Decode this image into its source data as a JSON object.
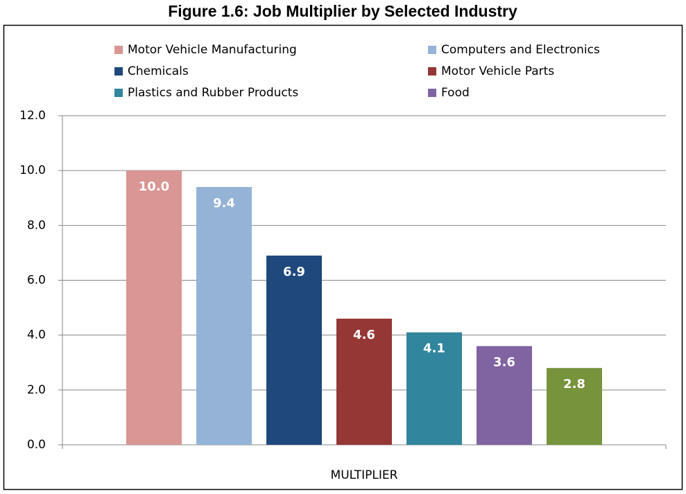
{
  "chart_data": {
    "type": "bar",
    "title": "Figure 1.6:  Job Multiplier by Selected Industry",
    "categories": [
      "MULTIPLIER"
    ],
    "series": [
      {
        "name": "Motor Vehicle Manufacturing",
        "color": "#d99694",
        "values": [
          10
        ],
        "value_labels": [
          "10.0"
        ]
      },
      {
        "name": "Computers and Electronics",
        "color": "#95b3d7",
        "values": [
          9.4
        ]
      },
      {
        "name": "Chemicals",
        "color": "#1f497d",
        "values": [
          6.9
        ]
      },
      {
        "name": "Motor Vehicle Parts",
        "color": "#953735",
        "values": [
          4.6
        ]
      },
      {
        "name": "Plastics and Rubber Products",
        "color": "#31859c",
        "values": [
          4.1
        ]
      },
      {
        "name": "Food",
        "color": "#8064a2",
        "values": [
          3.6
        ]
      },
      {
        "color": "#77933c",
        "values": [
          2.8
        ]
      }
    ],
    "ylim": [
      0,
      12
    ],
    "yticks": [
      {
        "value": 0,
        "label": "0.0"
      },
      {
        "value": 2,
        "label": "2.0"
      },
      {
        "value": 4,
        "label": "4.0"
      },
      {
        "value": 6,
        "label": "6.0"
      },
      {
        "value": 8,
        "label": "8.0"
      },
      {
        "value": 10,
        "label": "10.0"
      },
      {
        "value": 12,
        "label": "12.0"
      }
    ],
    "grid": true
  }
}
